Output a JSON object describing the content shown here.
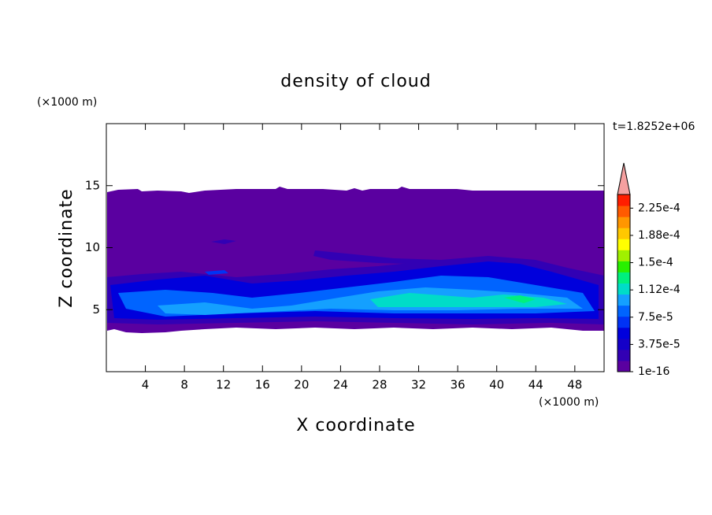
{
  "chart_data": {
    "type": "contour",
    "title": "density of cloud",
    "xlabel": "X coordinate",
    "ylabel": "Z coordinate",
    "xunit": "(×1000 m)",
    "yunit": "(×1000 m)",
    "time_label": "t=1.8252e+06",
    "xlim": [
      0,
      51
    ],
    "ylim": [
      0,
      20
    ],
    "xticks": [
      4,
      8,
      12,
      16,
      20,
      24,
      28,
      32,
      36,
      40,
      44,
      48
    ],
    "yticks": [
      5,
      10,
      15
    ],
    "colorbar": {
      "clim": [
        0,
        0.00024375
      ],
      "colors": [
        "#5a00a0",
        "#3200b4",
        "#1400c8",
        "#0000dc",
        "#0032f5",
        "#0064ff",
        "#14a0ff",
        "#00dcc8",
        "#00f07d",
        "#28f000",
        "#a0f000",
        "#ffff00",
        "#ffc800",
        "#ff9600",
        "#ff5a00",
        "#ff1e00"
      ],
      "extend_color": "#f5a0a0",
      "ticks": [
        1e-16,
        {
          "value": 3.75e-05,
          "label": "3.75e-5"
        },
        {
          "value": 7.5e-05,
          "label": "7.5e-5"
        },
        {
          "value": 0.0001125,
          "label": "1.12e-4"
        },
        {
          "value": 0.00015,
          "label": "1.5e-4"
        },
        {
          "value": 0.0001875,
          "label": "1.88e-4"
        },
        {
          "value": 0.000225,
          "label": "2.25e-4"
        }
      ]
    }
  }
}
